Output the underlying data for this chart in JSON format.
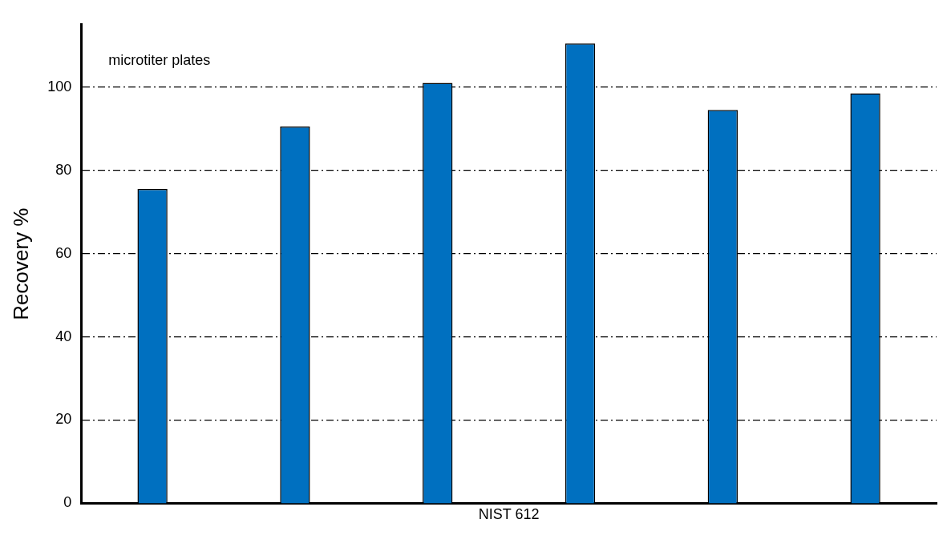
{
  "chart_data": {
    "type": "bar",
    "xlabel": "NIST 612",
    "ylabel": "Recovery %",
    "annotations": [
      "microtiter plates"
    ],
    "categories": [
      null,
      null,
      null,
      null,
      null,
      null
    ],
    "values": [
      75.5,
      90.5,
      101,
      110.5,
      94.5,
      98.5
    ],
    "color": "#0070c0",
    "ylim": [
      0,
      115
    ],
    "yticks": [
      0,
      20,
      40,
      60,
      80,
      100
    ],
    "grid": "y",
    "legend": false,
    "line_style": "dashed"
  }
}
